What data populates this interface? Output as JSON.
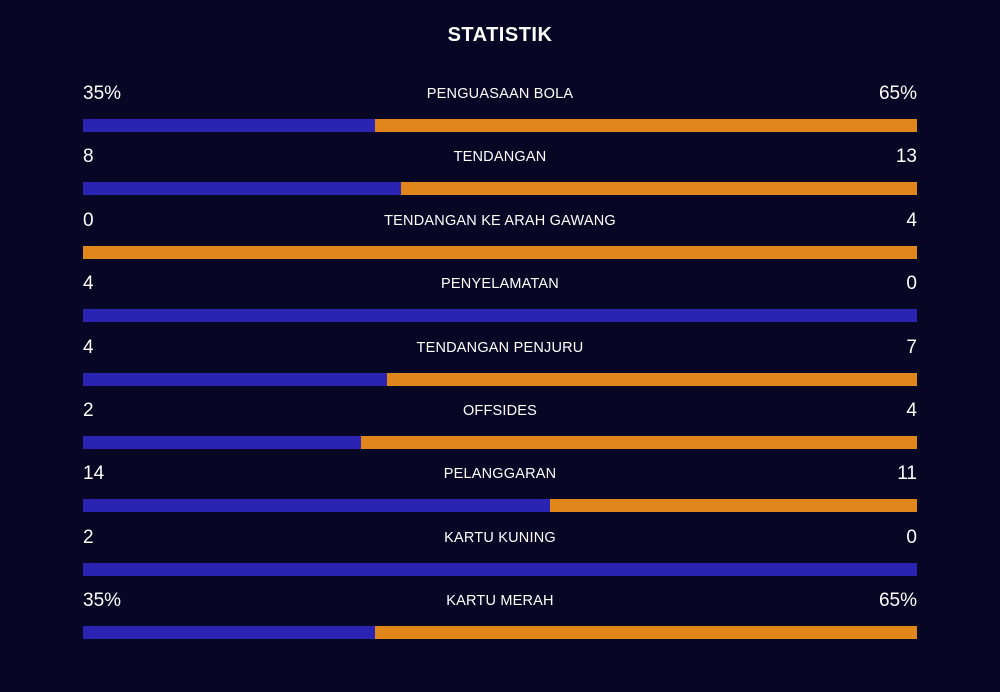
{
  "title": "STATISTIK",
  "colors": {
    "background": "#080625",
    "home": "#2b24b3",
    "away": "#e0861a"
  },
  "stats": [
    {
      "label": "PENGUASAAN BOLA",
      "home": "35%",
      "away": "65%",
      "home_share": 0.35
    },
    {
      "label": "TENDANGAN",
      "home": "8",
      "away": "13",
      "home_share": 0.381
    },
    {
      "label": "TENDANGAN KE ARAH GAWANG",
      "home": "0",
      "away": "4",
      "home_share": 0.0
    },
    {
      "label": "PENYELAMATAN",
      "home": "4",
      "away": "0",
      "home_share": 1.0
    },
    {
      "label": "TENDANGAN PENJURU",
      "home": "4",
      "away": "7",
      "home_share": 0.364
    },
    {
      "label": "OFFSIDES",
      "home": "2",
      "away": "4",
      "home_share": 0.333
    },
    {
      "label": "PELANGGARAN",
      "home": "14",
      "away": "11",
      "home_share": 0.56
    },
    {
      "label": "KARTU KUNING",
      "home": "2",
      "away": "0",
      "home_share": 1.0
    },
    {
      "label": "KARTU MERAH",
      "home": "35%",
      "away": "65%",
      "home_share": 0.35
    }
  ]
}
